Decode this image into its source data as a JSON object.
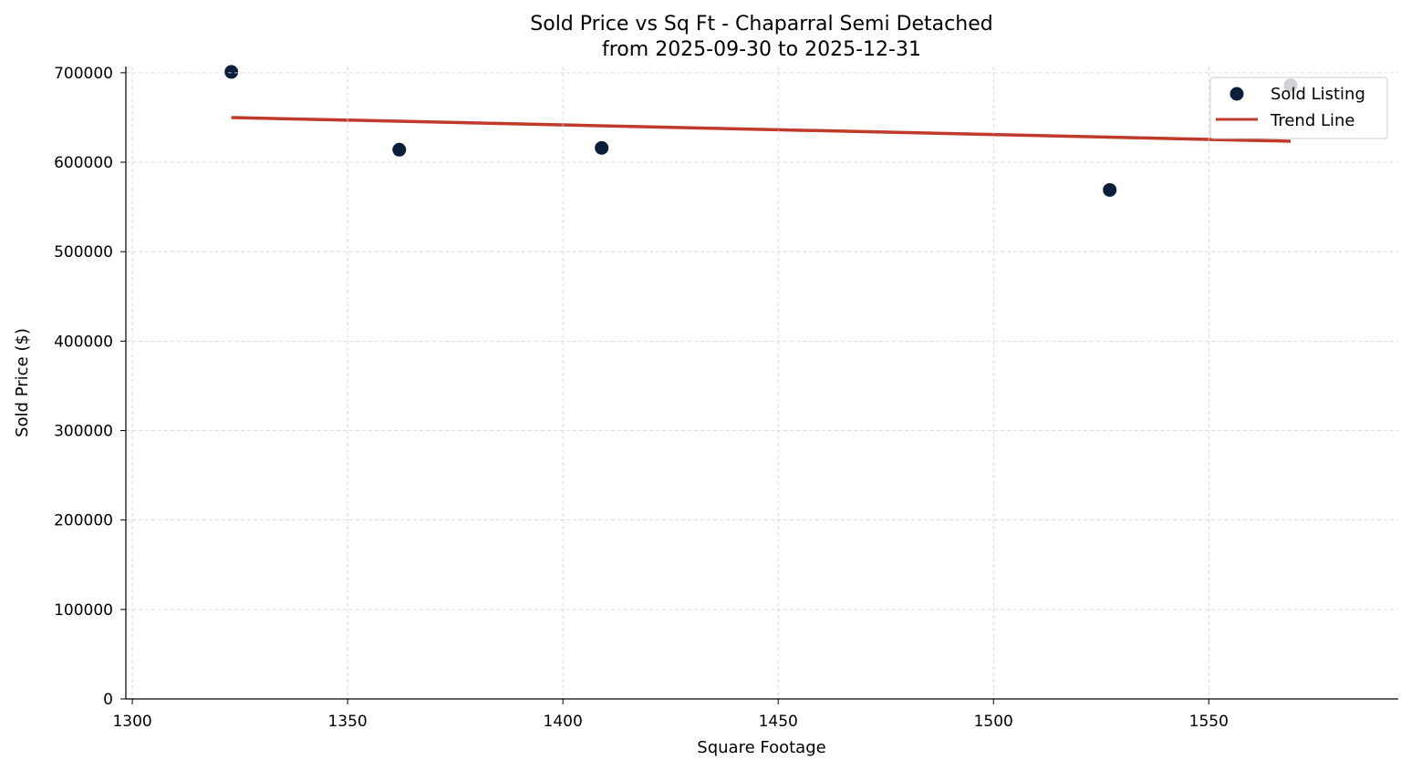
{
  "chart_data": {
    "type": "scatter",
    "title": "Sold Price vs Sq Ft - Chaparral Semi Detached",
    "subtitle": "from 2025-09-30 to 2025-12-31",
    "xlabel": "Square Footage",
    "ylabel": "Sold Price ($)",
    "xlim": [
      1298.5,
      1594
    ],
    "ylim": [
      0,
      707000
    ],
    "xticks": [
      1300,
      1350,
      1400,
      1450,
      1500,
      1550
    ],
    "yticks": [
      0,
      100000,
      200000,
      300000,
      400000,
      500000,
      600000,
      700000
    ],
    "grid": true,
    "legend": {
      "position": "top-right",
      "entries": [
        "Sold Listing",
        "Trend Line"
      ]
    },
    "series": [
      {
        "name": "Sold Listing",
        "kind": "scatter",
        "color": "#0b1f3a",
        "points": [
          [
            1323,
            701000
          ],
          [
            1362,
            614000
          ],
          [
            1409,
            616000
          ],
          [
            1527,
            569000
          ],
          [
            1569,
            686000
          ]
        ]
      },
      {
        "name": "Trend Line",
        "kind": "line",
        "color": "#c0392b",
        "points": [
          [
            1323,
            650000
          ],
          [
            1569,
            623500
          ]
        ]
      }
    ]
  }
}
